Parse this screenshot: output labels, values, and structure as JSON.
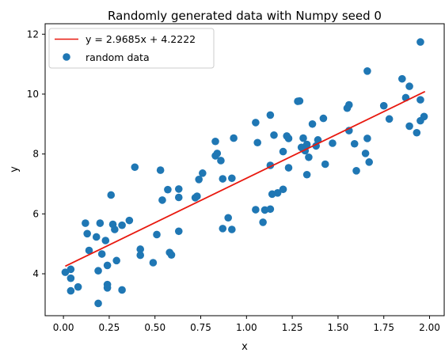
{
  "chart_data": {
    "type": "scatter",
    "title": "Randomly generated data with Numpy seed 0",
    "xlabel": "x",
    "ylabel": "y",
    "xlim": [
      -0.1,
      2.08
    ],
    "ylim": [
      2.6,
      12.35
    ],
    "xticks": [
      0.0,
      0.25,
      0.5,
      0.75,
      1.0,
      1.25,
      1.5,
      1.75,
      2.0
    ],
    "xtick_labels": [
      "0.00",
      "0.25",
      "0.50",
      "0.75",
      "1.00",
      "1.25",
      "1.50",
      "1.75",
      "2.00"
    ],
    "yticks": [
      4,
      6,
      8,
      10,
      12
    ],
    "ytick_labels": [
      "4",
      "6",
      "8",
      "10",
      "12"
    ],
    "grid": false,
    "legend_position": "top-left",
    "fit_line": {
      "label": "y = 2.9685x + 4.2222",
      "slope": 2.9685,
      "intercept": 4.2222,
      "x_range": [
        0.01,
        1.975
      ],
      "color": "#e8190f"
    },
    "series": [
      {
        "name": "random data",
        "color": "#1f77b4",
        "points": [
          [
            0.01,
            4.05
          ],
          [
            0.04,
            4.15
          ],
          [
            0.04,
            3.85
          ],
          [
            0.04,
            3.43
          ],
          [
            0.08,
            3.56
          ],
          [
            0.12,
            5.69
          ],
          [
            0.13,
            5.34
          ],
          [
            0.14,
            4.78
          ],
          [
            0.18,
            5.23
          ],
          [
            0.19,
            3.01
          ],
          [
            0.19,
            4.1
          ],
          [
            0.2,
            5.69
          ],
          [
            0.21,
            4.66
          ],
          [
            0.23,
            5.11
          ],
          [
            0.24,
            4.28
          ],
          [
            0.24,
            3.53
          ],
          [
            0.24,
            3.64
          ],
          [
            0.26,
            6.63
          ],
          [
            0.27,
            5.65
          ],
          [
            0.28,
            5.48
          ],
          [
            0.29,
            4.44
          ],
          [
            0.32,
            3.46
          ],
          [
            0.32,
            5.62
          ],
          [
            0.36,
            5.78
          ],
          [
            0.39,
            7.56
          ],
          [
            0.42,
            4.82
          ],
          [
            0.42,
            4.62
          ],
          [
            0.49,
            4.37
          ],
          [
            0.51,
            5.31
          ],
          [
            0.53,
            7.46
          ],
          [
            0.54,
            6.46
          ],
          [
            0.57,
            6.81
          ],
          [
            0.58,
            4.71
          ],
          [
            0.59,
            4.63
          ],
          [
            0.63,
            6.83
          ],
          [
            0.63,
            6.55
          ],
          [
            0.63,
            5.42
          ],
          [
            0.72,
            6.54
          ],
          [
            0.73,
            6.59
          ],
          [
            0.74,
            7.15
          ],
          [
            0.76,
            7.36
          ],
          [
            0.83,
            8.42
          ],
          [
            0.83,
            7.94
          ],
          [
            0.84,
            8.02
          ],
          [
            0.86,
            7.78
          ],
          [
            0.87,
            7.17
          ],
          [
            0.87,
            5.51
          ],
          [
            0.9,
            5.87
          ],
          [
            0.92,
            5.48
          ],
          [
            0.92,
            7.19
          ],
          [
            0.93,
            8.53
          ],
          [
            1.05,
            9.05
          ],
          [
            1.05,
            6.14
          ],
          [
            1.06,
            8.38
          ],
          [
            1.09,
            5.72
          ],
          [
            1.1,
            6.13
          ],
          [
            1.13,
            6.16
          ],
          [
            1.13,
            7.62
          ],
          [
            1.13,
            9.3
          ],
          [
            1.14,
            6.66
          ],
          [
            1.15,
            8.63
          ],
          [
            1.17,
            6.7
          ],
          [
            1.2,
            6.82
          ],
          [
            1.2,
            8.08
          ],
          [
            1.22,
            8.6
          ],
          [
            1.23,
            7.54
          ],
          [
            1.23,
            8.52
          ],
          [
            1.28,
            9.76
          ],
          [
            1.29,
            9.77
          ],
          [
            1.3,
            8.22
          ],
          [
            1.31,
            8.53
          ],
          [
            1.32,
            8.11
          ],
          [
            1.33,
            8.32
          ],
          [
            1.33,
            7.31
          ],
          [
            1.34,
            7.89
          ],
          [
            1.36,
            9.0
          ],
          [
            1.38,
            8.27
          ],
          [
            1.39,
            8.47
          ],
          [
            1.42,
            9.19
          ],
          [
            1.43,
            7.66
          ],
          [
            1.47,
            8.36
          ],
          [
            1.55,
            9.53
          ],
          [
            1.56,
            9.64
          ],
          [
            1.56,
            8.78
          ],
          [
            1.59,
            8.34
          ],
          [
            1.6,
            7.44
          ],
          [
            1.65,
            8.02
          ],
          [
            1.66,
            10.77
          ],
          [
            1.66,
            8.52
          ],
          [
            1.67,
            7.73
          ],
          [
            1.75,
            9.61
          ],
          [
            1.78,
            9.17
          ],
          [
            1.85,
            10.51
          ],
          [
            1.87,
            9.88
          ],
          [
            1.89,
            10.26
          ],
          [
            1.89,
            8.93
          ],
          [
            1.93,
            8.71
          ],
          [
            1.95,
            11.74
          ],
          [
            1.95,
            9.81
          ],
          [
            1.95,
            9.11
          ],
          [
            1.97,
            9.25
          ]
        ]
      }
    ]
  }
}
